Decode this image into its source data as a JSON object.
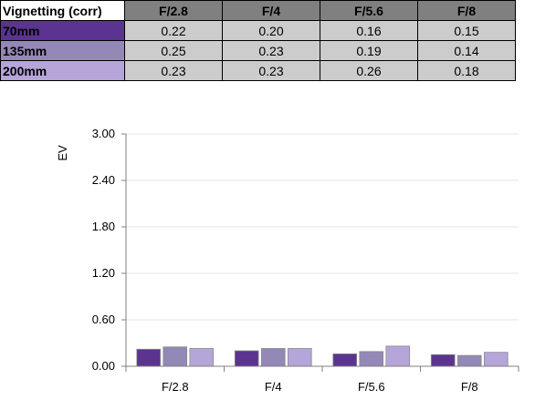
{
  "table": {
    "corner": "Vignetting (corr)",
    "columns": [
      "F/2.8",
      "F/4",
      "F/5.6",
      "F/8"
    ],
    "rows": [
      {
        "label": "70mm",
        "color": "#5b3391",
        "values": [
          "0.22",
          "0.20",
          "0.16",
          "0.15"
        ]
      },
      {
        "label": "135mm",
        "color": "#9488b7",
        "values": [
          "0.25",
          "0.23",
          "0.19",
          "0.14"
        ]
      },
      {
        "label": "200mm",
        "color": "#b5a5d9",
        "values": [
          "0.23",
          "0.23",
          "0.26",
          "0.18"
        ]
      }
    ]
  },
  "chart_data": {
    "type": "bar",
    "categories": [
      "F/2.8",
      "F/4",
      "F/5.6",
      "F/8"
    ],
    "series": [
      {
        "name": "70mm",
        "color": "#5b3391",
        "values": [
          0.22,
          0.2,
          0.16,
          0.15
        ]
      },
      {
        "name": "135mm",
        "color": "#9488b7",
        "values": [
          0.25,
          0.23,
          0.19,
          0.14
        ]
      },
      {
        "name": "200mm",
        "color": "#b5a5d9",
        "values": [
          0.23,
          0.23,
          0.26,
          0.18
        ]
      }
    ],
    "ylabel": "EV",
    "ylim": [
      0,
      3
    ],
    "yticks": [
      "0.00",
      "0.60",
      "1.20",
      "1.80",
      "2.40",
      "3.00"
    ],
    "grid": true,
    "gridline_color": "#e6e6e6",
    "legend": "none"
  }
}
